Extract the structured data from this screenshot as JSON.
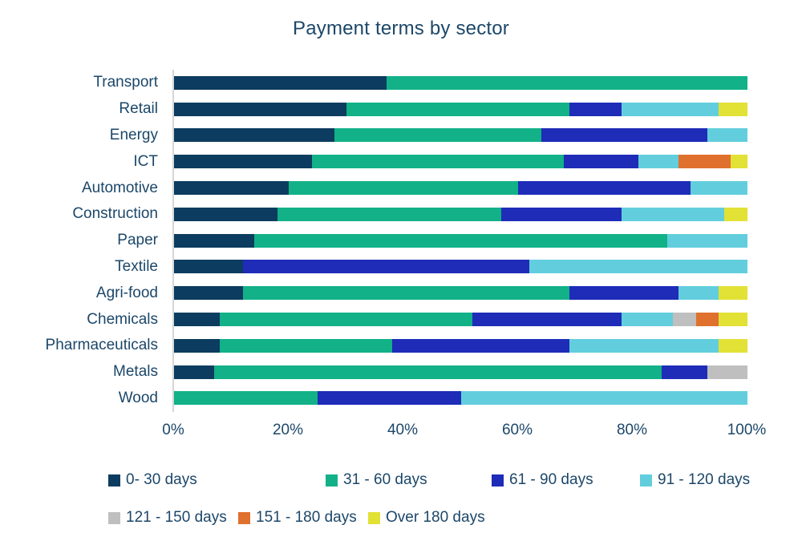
{
  "title": "Payment terms by sector",
  "text_color": "#1c4769",
  "axis_line_color": "#d6d6d6",
  "chart_data": {
    "type": "bar",
    "stacked": true,
    "orientation": "horizontal",
    "title": "Payment terms by sector",
    "categories": [
      "Transport",
      "Retail",
      "Energy",
      "ICT",
      "Automotive",
      "Construction",
      "Paper",
      "Textile",
      "Agri-food",
      "Chemicals",
      "Pharmaceuticals",
      "Metals",
      "Wood"
    ],
    "series": [
      {
        "name": "0- 30 days",
        "color": "#0c3c5f",
        "values": [
          37,
          30,
          28,
          24,
          20,
          18,
          14,
          12,
          12,
          8,
          8,
          7,
          0
        ]
      },
      {
        "name": "31 - 60 days",
        "color": "#12b188",
        "values": [
          63,
          39,
          36,
          44,
          40,
          39,
          72,
          0,
          57,
          44,
          30,
          78,
          25
        ]
      },
      {
        "name": "61 - 90 days",
        "color": "#1e2cb8",
        "values": [
          0,
          9,
          29,
          13,
          30,
          21,
          0,
          50,
          19,
          26,
          31,
          8,
          25
        ]
      },
      {
        "name": "91 - 120 days",
        "color": "#62cedd",
        "values": [
          0,
          17,
          7,
          7,
          10,
          18,
          14,
          38,
          7,
          9,
          26,
          0,
          50
        ]
      },
      {
        "name": "121 - 150 days",
        "color": "#bfbfbf",
        "values": [
          0,
          0,
          0,
          0,
          0,
          0,
          0,
          0,
          0,
          4,
          0,
          7,
          0
        ]
      },
      {
        "name": "151 - 180 days",
        "color": "#e0702d",
        "values": [
          0,
          0,
          0,
          9,
          0,
          0,
          0,
          0,
          0,
          4,
          0,
          0,
          0
        ]
      },
      {
        "name": "Over 180 days",
        "color": "#e2e135",
        "values": [
          0,
          5,
          0,
          3,
          0,
          4,
          0,
          0,
          5,
          5,
          5,
          0,
          0
        ]
      }
    ],
    "x_ticks": [
      "0%",
      "20%",
      "40%",
      "60%",
      "80%",
      "100%"
    ],
    "xlim": [
      0,
      100
    ],
    "unit": "%",
    "grid": "off",
    "legend_position": "bottom"
  }
}
